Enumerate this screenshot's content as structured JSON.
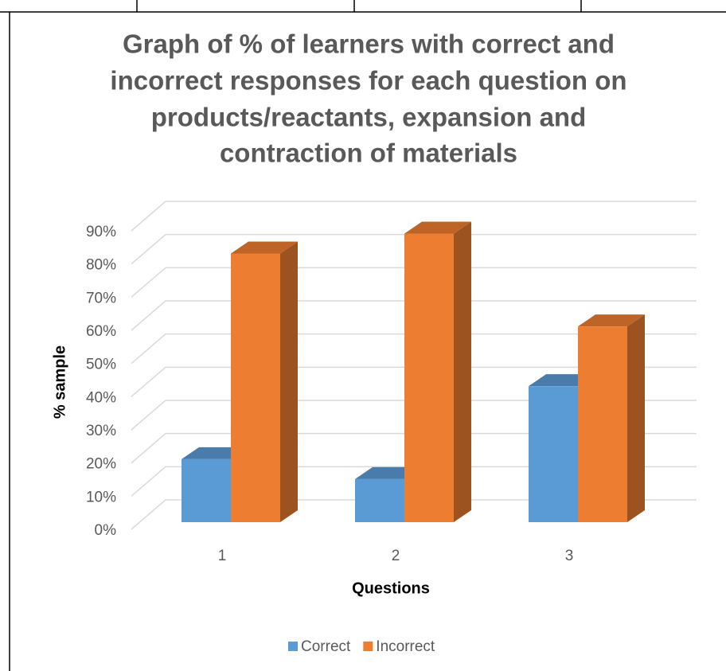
{
  "chart_data": {
    "type": "bar3d",
    "title": [
      "Graph of % of learners with correct and",
      "incorrect responses for each question on",
      "products/reactants, expansion and",
      "contraction of materials"
    ],
    "x_label": "Questions",
    "y_label": "% sample",
    "categories": [
      "1",
      "2",
      "3"
    ],
    "series": [
      {
        "name": "Correct",
        "color": "#5b9bd5",
        "values": [
          19,
          13,
          41
        ]
      },
      {
        "name": "Incorrect",
        "color": "#ed7d31",
        "values": [
          81,
          87,
          59
        ]
      }
    ],
    "ylim": [
      0,
      90
    ],
    "yticks": [
      {
        "value": 0,
        "label": "0%"
      },
      {
        "value": 10,
        "label": "10%"
      },
      {
        "value": 20,
        "label": "20%"
      },
      {
        "value": 30,
        "label": "30%"
      },
      {
        "value": 40,
        "label": "40%"
      },
      {
        "value": 50,
        "label": "50%"
      },
      {
        "value": 60,
        "label": "60%"
      },
      {
        "value": 70,
        "label": "70%"
      },
      {
        "value": 80,
        "label": "80%"
      },
      {
        "value": 90,
        "label": "90%"
      }
    ],
    "grid": true,
    "legend": "bottom"
  }
}
